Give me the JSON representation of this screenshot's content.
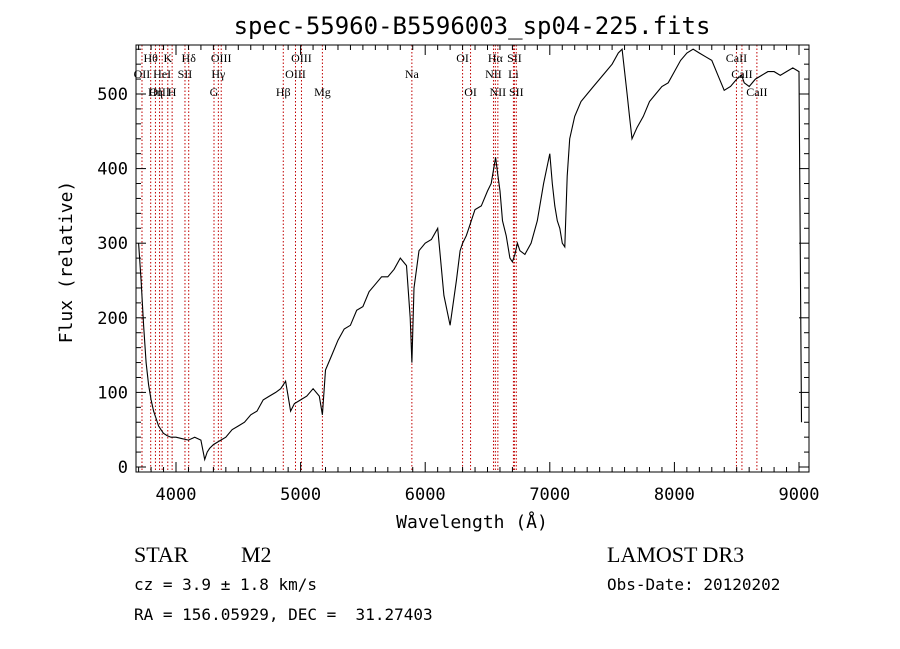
{
  "chart_data": {
    "type": "line",
    "title": "spec-55960-B5596003_sp04-225.fits",
    "xlabel": "Wavelength (Å)",
    "ylabel": "Flux (relative)",
    "xlim": [
      3700,
      9050
    ],
    "ylim": [
      0,
      565
    ],
    "x_ticks": [
      4000,
      5000,
      6000,
      7000,
      8000,
      9000
    ],
    "y_ticks": [
      0,
      100,
      200,
      300,
      400,
      500
    ],
    "series": [
      {
        "name": "flux",
        "x": [
          3700,
          3720,
          3740,
          3760,
          3780,
          3800,
          3820,
          3840,
          3860,
          3880,
          3900,
          3930,
          3960,
          4000,
          4050,
          4100,
          4150,
          4200,
          4230,
          4250,
          4270,
          4300,
          4350,
          4400,
          4450,
          4500,
          4550,
          4600,
          4650,
          4700,
          4750,
          4800,
          4840,
          4860,
          4880,
          4900,
          4920,
          4950,
          5000,
          5050,
          5100,
          5150,
          5175,
          5200,
          5250,
          5300,
          5350,
          5400,
          5450,
          5500,
          5550,
          5600,
          5650,
          5700,
          5750,
          5800,
          5850,
          5880,
          5893,
          5910,
          5950,
          6000,
          6050,
          6100,
          6150,
          6200,
          6250,
          6280,
          6300,
          6330,
          6350,
          6380,
          6400,
          6450,
          6500,
          6530,
          6550,
          6565,
          6580,
          6600,
          6620,
          6650,
          6680,
          6700,
          6720,
          6740,
          6760,
          6800,
          6850,
          6900,
          6950,
          7000,
          7020,
          7040,
          7060,
          7080,
          7100,
          7120,
          7140,
          7160,
          7200,
          7250,
          7300,
          7350,
          7400,
          7450,
          7500,
          7550,
          7580,
          7600,
          7620,
          7640,
          7660,
          7700,
          7750,
          7800,
          7850,
          7900,
          7950,
          8000,
          8050,
          8100,
          8150,
          8200,
          8250,
          8300,
          8350,
          8400,
          8450,
          8500,
          8540,
          8560,
          8600,
          8650,
          8700,
          8750,
          8800,
          8850,
          8900,
          8950,
          9000,
          9020
        ],
        "values": [
          300,
          250,
          190,
          140,
          110,
          90,
          75,
          65,
          55,
          50,
          45,
          42,
          40,
          40,
          38,
          36,
          40,
          36,
          10,
          20,
          25,
          30,
          35,
          40,
          50,
          55,
          60,
          70,
          75,
          90,
          95,
          100,
          105,
          110,
          115,
          95,
          75,
          85,
          90,
          95,
          105,
          95,
          70,
          130,
          150,
          170,
          185,
          190,
          210,
          215,
          235,
          245,
          255,
          255,
          265,
          280,
          270,
          200,
          140,
          240,
          290,
          300,
          305,
          320,
          230,
          190,
          250,
          290,
          300,
          310,
          320,
          335,
          345,
          350,
          370,
          380,
          400,
          415,
          395,
          370,
          330,
          310,
          280,
          275,
          285,
          300,
          290,
          285,
          300,
          330,
          380,
          420,
          380,
          350,
          330,
          320,
          300,
          295,
          390,
          440,
          470,
          490,
          500,
          510,
          520,
          530,
          540,
          555,
          560,
          530,
          500,
          470,
          440,
          455,
          470,
          490,
          500,
          510,
          515,
          530,
          545,
          555,
          560,
          555,
          550,
          545,
          525,
          505,
          510,
          520,
          525,
          515,
          510,
          520,
          525,
          530,
          530,
          525,
          530,
          535,
          530,
          60
        ]
      }
    ],
    "lines": [
      {
        "label": "Hθ",
        "x": 3797,
        "row": 1
      },
      {
        "label": "OII",
        "x": 3727,
        "row": 2
      },
      {
        "label": "OIII",
        "x": 3868,
        "row": 3
      },
      {
        "label": "Hη",
        "x": 3835,
        "row": 3
      },
      {
        "label": "K",
        "x": 3934,
        "row": 1
      },
      {
        "label": "HeI",
        "x": 3889,
        "row": 2
      },
      {
        "label": "SII",
        "x": 4072,
        "row": 2
      },
      {
        "label": "H",
        "x": 3969,
        "row": 3
      },
      {
        "label": "Hδ",
        "x": 4102,
        "row": 1
      },
      {
        "label": "OIII",
        "x": 4363,
        "row": 1
      },
      {
        "label": "Hγ",
        "x": 4340,
        "row": 2
      },
      {
        "label": "G",
        "x": 4305,
        "row": 3
      },
      {
        "label": "Hβ",
        "x": 4861,
        "row": 3
      },
      {
        "label": "OIII",
        "x": 5007,
        "row": 1
      },
      {
        "label": "OIII",
        "x": 4959,
        "row": 2
      },
      {
        "label": "Mg",
        "x": 5175,
        "row": 3
      },
      {
        "label": "Na",
        "x": 5893,
        "row": 2
      },
      {
        "label": "OI",
        "x": 6300,
        "row": 1
      },
      {
        "label": "OI",
        "x": 6364,
        "row": 3
      },
      {
        "label": "Hα",
        "x": 6563,
        "row": 1
      },
      {
        "label": "SII",
        "x": 6716,
        "row": 1
      },
      {
        "label": "NII",
        "x": 6548,
        "row": 2
      },
      {
        "label": "Li",
        "x": 6708,
        "row": 2
      },
      {
        "label": "NII",
        "x": 6583,
        "row": 3
      },
      {
        "label": "SII",
        "x": 6731,
        "row": 3
      },
      {
        "label": "CaII",
        "x": 8498,
        "row": 1
      },
      {
        "label": "CaII",
        "x": 8542,
        "row": 2
      },
      {
        "label": "CaII",
        "x": 8662,
        "row": 3
      }
    ]
  },
  "info": {
    "class_label": "STAR",
    "subclass": "M2",
    "survey": "LAMOST DR3",
    "cz": "cz = 3.9 ± 1.8 km/s",
    "obs_date": "Obs-Date: 20120202",
    "coords": "RA = 156.05929, DEC =  31.27403"
  }
}
